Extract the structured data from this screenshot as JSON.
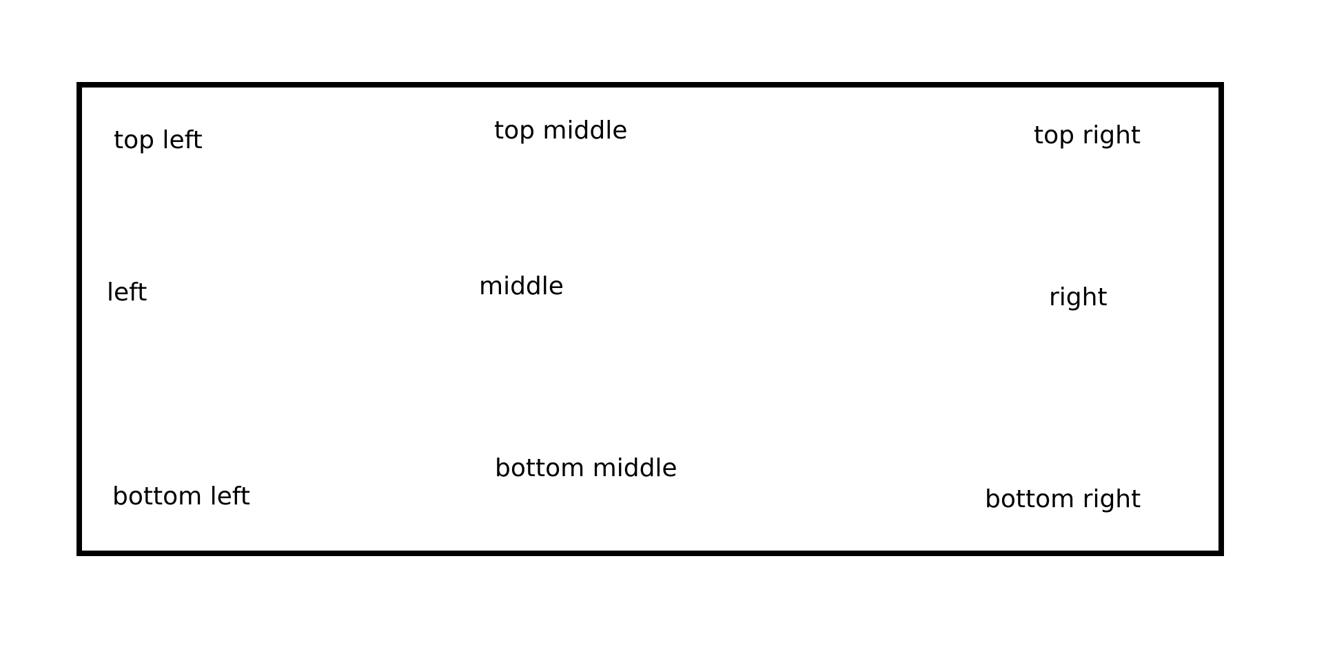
{
  "labels": {
    "top_left": "top left",
    "top_middle": "top middle",
    "top_right": "top right",
    "left": "left",
    "middle": "middle",
    "right": "right",
    "bottom_left": "bottom left",
    "bottom_middle": "bottom middle",
    "bottom_right": "bottom right"
  }
}
